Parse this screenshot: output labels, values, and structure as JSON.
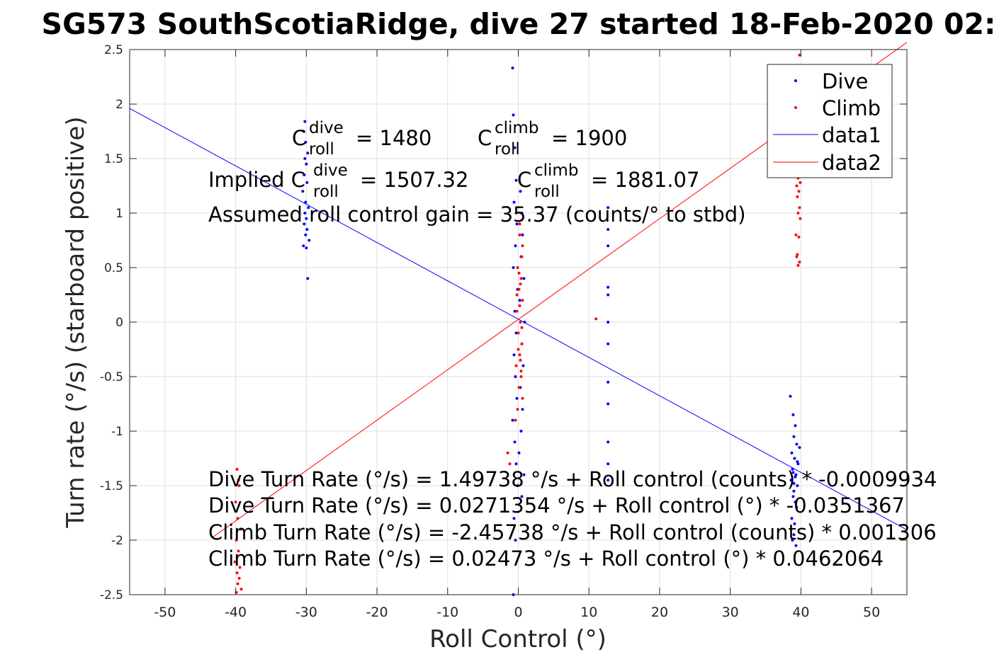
{
  "chart_data": {
    "type": "scatter",
    "title": "SG573 SouthScotiaRidge, dive 27 started 18-Feb-2020 02:",
    "xlabel": "Roll Control (°)",
    "ylabel": "Turn rate (°/s) (starboard positive)",
    "xlim": [
      -55,
      55
    ],
    "ylim": [
      -2.5,
      2.5
    ],
    "xticks": [
      -50,
      -40,
      -30,
      -20,
      -10,
      0,
      10,
      20,
      30,
      40,
      50
    ],
    "yticks": [
      -2.5,
      -2,
      -1.5,
      -1,
      -0.5,
      0,
      0.5,
      1,
      1.5,
      2,
      2.5
    ],
    "xtick_labels": [
      "-50",
      "-40",
      "-30",
      "-20",
      "-10",
      "0",
      "10",
      "20",
      "30",
      "40",
      "50"
    ],
    "ytick_labels": [
      "-2.5",
      "-2",
      "-1.5",
      "-1",
      "-0.5",
      "0",
      "0.5",
      "1",
      "1.5",
      "2",
      "2.5"
    ],
    "grid": true,
    "legend_position": "top-right",
    "legend": [
      "Dive",
      "Climb",
      "data1",
      "data2"
    ],
    "colors": {
      "dive": "#0000ff",
      "climb": "#ff0000",
      "axis": "#262626",
      "grid": "#dfdfdf"
    },
    "series": [
      {
        "name": "Dive",
        "kind": "points",
        "color": "#0000ff",
        "x": [
          -30.2,
          -30.4,
          -30.1,
          -29.8,
          -30.0,
          -30.3,
          -29.9,
          -30.5,
          -30.1,
          -29.7,
          -30.2,
          -30.0,
          -30.3,
          -29.9,
          -30.1,
          -29.6,
          -30.4,
          -30.0,
          -29.8,
          -30.2,
          -0.8,
          -0.5,
          -0.3,
          -0.6,
          -0.2,
          -0.4,
          -0.7,
          -0.1,
          -0.5,
          -0.3,
          -0.6,
          -0.4,
          -0.2,
          -0.8,
          -0.5,
          -0.3,
          -0.1,
          -0.6,
          -0.4,
          -0.7,
          0.3,
          0.5,
          0.6,
          0.4,
          0.8,
          0.2,
          0.9,
          0.5,
          0.7,
          0.3,
          0.6,
          0.4,
          0.1,
          0.8,
          0.5,
          12.7,
          12.7,
          12.7,
          12.7,
          12.7,
          12.7,
          12.7,
          12.7,
          12.7,
          12.7,
          12.7,
          12.7,
          38.5,
          38.9,
          39.2,
          39.0,
          39.4,
          38.7,
          39.1,
          39.6,
          38.8,
          39.3,
          38.6,
          39.5,
          39.0,
          38.9,
          39.2,
          39.4,
          38.7,
          39.1,
          39.8,
          39.0,
          38.8,
          39.3,
          39.5,
          38.9,
          39.2,
          39.0,
          -0.7
        ],
        "y": [
          1.84,
          1.75,
          1.65,
          1.55,
          1.45,
          1.35,
          1.28,
          1.2,
          1.1,
          1.05,
          1.0,
          0.95,
          0.9,
          0.85,
          0.8,
          0.75,
          0.7,
          0.68,
          0.4,
          1.5,
          2.33,
          1.6,
          1.3,
          1.1,
          0.9,
          0.7,
          0.5,
          0.3,
          0.1,
          -0.1,
          -0.3,
          -0.5,
          -0.7,
          -0.9,
          -1.1,
          -1.3,
          -1.5,
          -1.8,
          -2.0,
          -2.5,
          1.2,
          1.0,
          0.8,
          0.6,
          0.4,
          0.2,
          0.0,
          -0.2,
          -0.4,
          -0.6,
          -0.8,
          -1.0,
          -1.2,
          -1.4,
          -1.6,
          1.05,
          0.85,
          0.7,
          0.32,
          0.25,
          0.0,
          -0.2,
          -0.55,
          -0.75,
          -1.1,
          -1.3,
          -1.45,
          -0.68,
          -0.85,
          -0.95,
          -1.05,
          -1.12,
          -1.2,
          -1.25,
          -1.3,
          -1.35,
          -1.4,
          -1.45,
          -1.5,
          -1.55,
          -1.6,
          -1.65,
          -1.7,
          -1.8,
          -1.85,
          -1.15,
          -1.95,
          -2.0,
          -2.05,
          -1.28,
          -1.38,
          -1.42,
          -1.48,
          1.9
        ]
      },
      {
        "name": "Climb",
        "kind": "points",
        "color": "#ff0000",
        "x": [
          39.8,
          39.6,
          39.9,
          39.4,
          39.7,
          39.5,
          39.8,
          39.6,
          39.9,
          39.3,
          39.7,
          39.5,
          39.8,
          39.6,
          39.4,
          -39.8,
          -39.5,
          -40.0,
          -39.7,
          -39.3,
          -39.9,
          -39.6,
          -40.1,
          -39.4,
          -39.8,
          -39.5,
          -39.7,
          -39.2,
          -39.9,
          -39.6,
          -0.3,
          0.2,
          0.5,
          -0.1,
          0.4,
          0.1,
          0.6,
          -0.2,
          0.3,
          0.0,
          0.5,
          0.2,
          -0.3,
          0.4,
          0.1,
          0.6,
          -0.1,
          0.3,
          0.2,
          0.5,
          0.0,
          0.4,
          -0.2,
          0.1,
          0.3,
          0.6,
          -0.4,
          0.2,
          -1.5,
          -1.2,
          11.0
        ],
        "y": [
          2.45,
          1.32,
          1.28,
          1.25,
          1.2,
          1.15,
          1.05,
          1.0,
          0.95,
          0.8,
          0.78,
          0.62,
          0.55,
          0.52,
          0.6,
          -1.35,
          -1.5,
          -1.65,
          -1.8,
          -1.9,
          -2.0,
          -2.1,
          -2.2,
          -2.25,
          -2.3,
          -2.35,
          -2.4,
          -2.45,
          -2.48,
          -1.45,
          1.0,
          0.8,
          0.6,
          0.5,
          0.4,
          0.3,
          0.2,
          0.1,
          0.0,
          -0.1,
          -0.2,
          -0.3,
          -0.4,
          -0.5,
          -0.6,
          -0.7,
          -0.8,
          0.35,
          0.15,
          -0.05,
          -0.25,
          -0.45,
          0.25,
          0.45,
          -0.35,
          0.7,
          -0.9,
          0.9,
          -1.2,
          -1.3,
          0.03
        ]
      },
      {
        "name": "data1",
        "kind": "line",
        "color": "#0000ff",
        "x": [
          -55,
          55
        ],
        "y": [
          1.9597,
          -1.9054
        ]
      },
      {
        "name": "data2",
        "kind": "line",
        "color": "#ff0000",
        "x": [
          -43.3,
          55
        ],
        "y": [
          -1.9758,
          2.5659
        ]
      }
    ],
    "annotations": {
      "c_dive_label": "C",
      "c_dive_sup": "dive",
      "c_dive_sub": "roll",
      "c_dive_value": "= 1480",
      "c_climb_label": "C",
      "c_climb_sup": "climb",
      "c_climb_sub": "roll",
      "c_climb_value": "= 1900",
      "implied_prefix": "Implied C",
      "implied_dive_sup": "dive",
      "implied_dive_sub": "roll",
      "implied_dive_value": "= 1507.32",
      "implied_climb_label": "C",
      "implied_climb_sup": "climb",
      "implied_climb_sub": "roll",
      "implied_climb_value": "= 1881.07",
      "gain": "Assumed roll control gain = 35.37 (counts/° to stbd)",
      "eq1": "Dive Turn Rate (°/s) = 1.49738 °/s + Roll control (counts) * -0.0009934",
      "eq2": "Dive Turn Rate (°/s) = 0.0271354 °/s + Roll control (°) * -0.0351367",
      "eq3": "Climb Turn Rate (°/s) = -2.45738 °/s + Roll control (counts) * 0.001306",
      "eq4": "Climb Turn Rate (°/s) = 0.02473 °/s + Roll control (°) * 0.0462064"
    }
  }
}
